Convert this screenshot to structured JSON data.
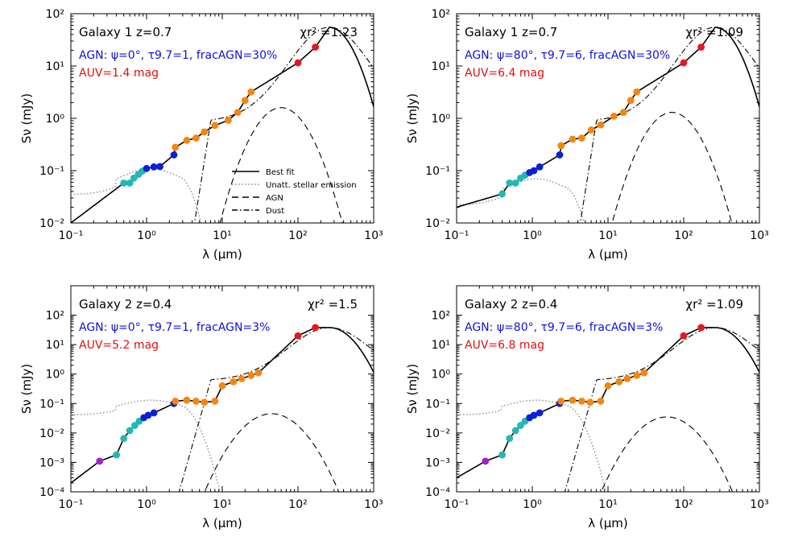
{
  "colors": {
    "agn_text": "#1010e0",
    "auv_text": "#e01010",
    "cyan_points": "#25b7b4",
    "blue_points": "#0a1fd8",
    "orange_points": "#f7850e",
    "red_points": "#e8161c",
    "purple_points": "#a020d0",
    "stellar_line": "#8c8c8c",
    "model_line": "#000000"
  },
  "shared_axes": {
    "xlabel": "λ (μm)",
    "ylabel": "Sν (mJy)",
    "xscale": "log",
    "yscale": "log",
    "xlim": [
      0.1,
      1000
    ],
    "xticks": [
      "10⁻¹",
      "10⁰",
      "10¹",
      "10²",
      "10³"
    ]
  },
  "legend": {
    "location": "center (top-left panel)",
    "entries": [
      "Best fit",
      "Unatt. stellar emission",
      "AGN",
      "Dust"
    ]
  },
  "chart_data": [
    {
      "type": "line",
      "panel": "top-left",
      "galaxy": "Galaxy 1",
      "redshift": "z=0.7",
      "agn_text": "AGN: ψ=0°, τ9.7=1, fracAGN=30%",
      "auv_text": "AUV=1.4 mag",
      "chi2_text": "χr² =1.23",
      "ylim": [
        0.01,
        100
      ],
      "yticks": [
        "10⁻²",
        "10⁻¹",
        "10⁰",
        "10¹",
        "10²"
      ],
      "agn_peak": 1.6,
      "agn_peak_x": 60,
      "stellar_peak": 0.11,
      "dust_peak": 55,
      "best_fit_offset": 0,
      "best_fit_low": 0.01,
      "points": {
        "cyan": [
          [
            0.5,
            0.058
          ],
          [
            0.6,
            0.058
          ],
          [
            0.68,
            0.072
          ],
          [
            0.78,
            0.085
          ],
          [
            0.88,
            0.098
          ]
        ],
        "blue": [
          [
            1.0,
            0.11
          ],
          [
            1.25,
            0.118
          ],
          [
            1.5,
            0.12
          ],
          [
            2.3,
            0.2
          ]
        ],
        "orange": [
          [
            2.4,
            0.28
          ],
          [
            3.4,
            0.38
          ],
          [
            4.5,
            0.42
          ],
          [
            5.8,
            0.55
          ],
          [
            8.0,
            0.73
          ],
          [
            12,
            0.92
          ],
          [
            16,
            1.3
          ],
          [
            20,
            2.2
          ],
          [
            24,
            3.2
          ]
        ],
        "red": [
          [
            100,
            11.5
          ],
          [
            170,
            23
          ]
        ],
        "purple": []
      }
    },
    {
      "type": "line",
      "panel": "top-right",
      "galaxy": "Galaxy 1",
      "redshift": "z=0.7",
      "agn_text": "AGN: ψ=80°, τ9.7=6, fracAGN=30%",
      "auv_text": "AUV=6.4 mag",
      "chi2_text": "χr² =1.09",
      "ylim": [
        0.01,
        100
      ],
      "yticks": [
        "10⁻²",
        "10⁻¹",
        "10⁰",
        "10¹",
        "10²"
      ],
      "agn_peak": 1.3,
      "agn_peak_x": 70,
      "stellar_peak": 0.07,
      "dust_peak": 55,
      "best_fit_offset": 0,
      "best_fit_low": 0.02,
      "points": {
        "cyan": [
          [
            0.4,
            0.036
          ],
          [
            0.5,
            0.058
          ],
          [
            0.6,
            0.058
          ],
          [
            0.7,
            0.072
          ],
          [
            0.8,
            0.082
          ]
        ],
        "blue": [
          [
            0.92,
            0.092
          ],
          [
            1.05,
            0.1
          ],
          [
            1.25,
            0.118
          ],
          [
            2.3,
            0.2
          ]
        ],
        "orange": [
          [
            2.4,
            0.3
          ],
          [
            3.4,
            0.4
          ],
          [
            4.5,
            0.42
          ],
          [
            6.0,
            0.6
          ],
          [
            8.0,
            0.75
          ],
          [
            12,
            1.1
          ],
          [
            16,
            1.3
          ],
          [
            20,
            2.2
          ],
          [
            24,
            3.2
          ]
        ],
        "red": [
          [
            100,
            11.5
          ],
          [
            170,
            23
          ]
        ],
        "purple": []
      }
    },
    {
      "type": "line",
      "panel": "bottom-left",
      "galaxy": "Galaxy 2",
      "redshift": "z=0.4",
      "agn_text": "AGN: ψ=0°, τ9.7=1, fracAGN=3%",
      "auv_text": "AUV=5.2 mag",
      "chi2_text": "χr² =1.5",
      "ylim": [
        0.0001,
        1000
      ],
      "yticks": [
        "10⁻⁴",
        "10⁻³",
        "10⁻²",
        "10⁻¹",
        "10⁰",
        "10¹",
        "10²"
      ],
      "agn_peak": 0.045,
      "agn_peak_x": 45,
      "stellar_peak": 0.13,
      "dust_peak": 38,
      "best_fit_offset": 0,
      "best_fit_low": 0.0002,
      "points": {
        "cyan": [
          [
            0.4,
            0.0018
          ],
          [
            0.5,
            0.0065
          ],
          [
            0.6,
            0.012
          ],
          [
            0.7,
            0.018
          ],
          [
            0.8,
            0.025
          ]
        ],
        "blue": [
          [
            0.92,
            0.033
          ],
          [
            1.05,
            0.04
          ],
          [
            1.25,
            0.048
          ],
          [
            2.3,
            0.1
          ]
        ],
        "orange": [
          [
            2.4,
            0.12
          ],
          [
            3.4,
            0.13
          ],
          [
            4.5,
            0.12
          ],
          [
            5.8,
            0.11
          ],
          [
            8.0,
            0.12
          ],
          [
            10,
            0.4
          ],
          [
            14,
            0.55
          ],
          [
            18,
            0.7
          ],
          [
            24,
            0.9
          ],
          [
            30,
            1.1
          ]
        ],
        "red": [
          [
            100,
            20
          ],
          [
            170,
            38
          ]
        ],
        "purple": [
          [
            0.24,
            0.0011
          ]
        ]
      }
    },
    {
      "type": "line",
      "panel": "bottom-right",
      "galaxy": "Galaxy 2",
      "redshift": "z=0.4",
      "agn_text": "AGN: ψ=80°, τ9.7=6, fracAGN=3%",
      "auv_text": "AUV=6.8 mag",
      "chi2_text": "χr² =1.09",
      "ylim": [
        0.0001,
        1000
      ],
      "yticks": [
        "10⁻⁴",
        "10⁻³",
        "10⁻²",
        "10⁻¹",
        "10⁰",
        "10¹",
        "10²"
      ],
      "agn_peak": 0.035,
      "agn_peak_x": 60,
      "stellar_peak": 0.13,
      "dust_peak": 38,
      "best_fit_offset": 0,
      "best_fit_low": 0.0003,
      "points": {
        "cyan": [
          [
            0.4,
            0.0018
          ],
          [
            0.5,
            0.0065
          ],
          [
            0.6,
            0.012
          ],
          [
            0.7,
            0.018
          ],
          [
            0.8,
            0.025
          ]
        ],
        "blue": [
          [
            0.92,
            0.033
          ],
          [
            1.05,
            0.04
          ],
          [
            1.25,
            0.048
          ],
          [
            2.3,
            0.1
          ]
        ],
        "orange": [
          [
            2.4,
            0.12
          ],
          [
            3.4,
            0.13
          ],
          [
            4.5,
            0.12
          ],
          [
            5.8,
            0.11
          ],
          [
            8.0,
            0.12
          ],
          [
            10,
            0.4
          ],
          [
            14,
            0.55
          ],
          [
            18,
            0.7
          ],
          [
            24,
            0.9
          ],
          [
            30,
            1.1
          ]
        ],
        "red": [
          [
            100,
            20
          ],
          [
            170,
            38
          ]
        ],
        "purple": [
          [
            0.24,
            0.0011
          ]
        ]
      }
    }
  ]
}
